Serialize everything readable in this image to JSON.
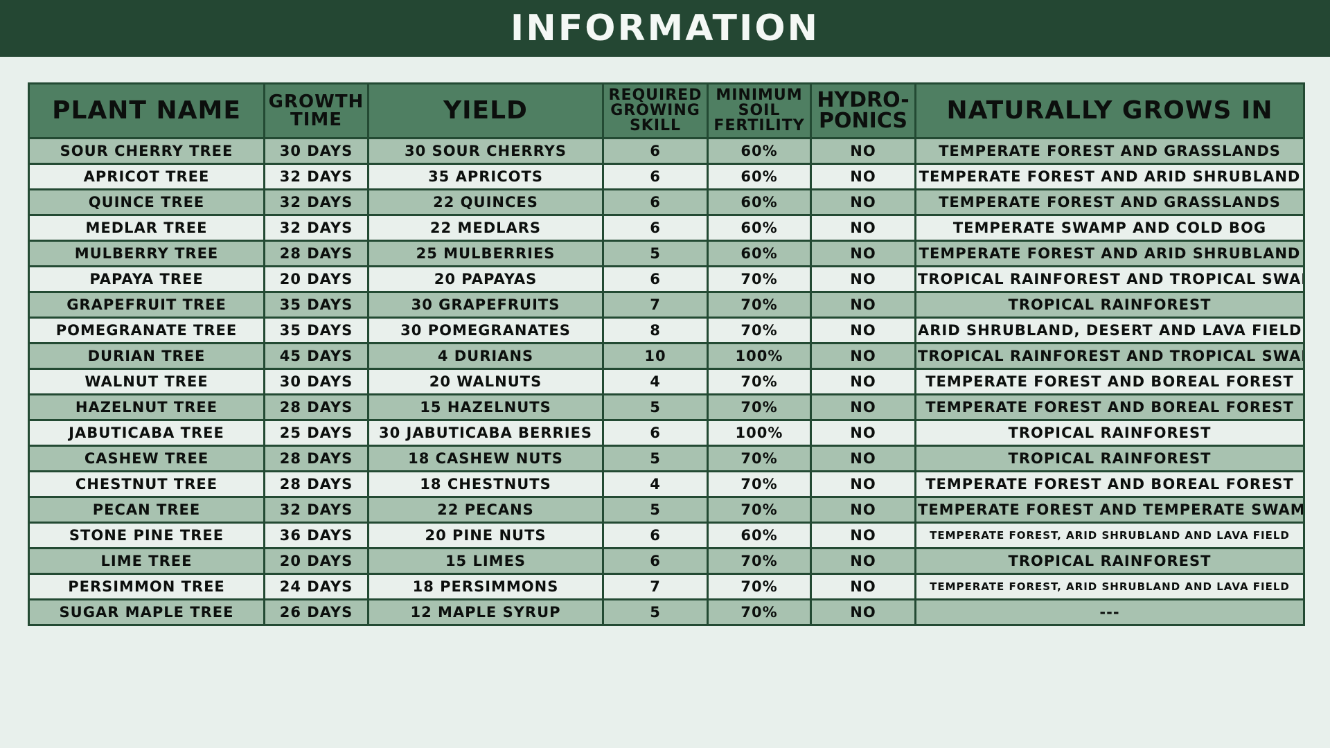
{
  "title": "INFORMATION",
  "columns": [
    "PLANT NAME",
    "GROWTH TIME",
    "YIELD",
    "REQUIRED GROWING SKILL",
    "MINIMUM SOIL FERTILITY",
    "HYDRO-PONICS",
    "NATURALLY GROWS IN"
  ],
  "rows": [
    [
      "SOUR CHERRY TREE",
      "30 DAYS",
      "30 SOUR CHERRYS",
      "6",
      "60%",
      "NO",
      "TEMPERATE FOREST AND GRASSLANDS"
    ],
    [
      "APRICOT TREE",
      "32 DAYS",
      "35 APRICOTS",
      "6",
      "60%",
      "NO",
      "TEMPERATE FOREST AND ARID SHRUBLAND"
    ],
    [
      "QUINCE TREE",
      "32 DAYS",
      "22 QUINCES",
      "6",
      "60%",
      "NO",
      "TEMPERATE FOREST AND GRASSLANDS"
    ],
    [
      "MEDLAR TREE",
      "32 DAYS",
      "22 MEDLARS",
      "6",
      "60%",
      "NO",
      "TEMPERATE SWAMP AND COLD BOG"
    ],
    [
      "MULBERRY TREE",
      "28 DAYS",
      "25 MULBERRIES",
      "5",
      "60%",
      "NO",
      "TEMPERATE FOREST AND ARID SHRUBLAND"
    ],
    [
      "PAPAYA TREE",
      "20 DAYS",
      "20 PAPAYAS",
      "6",
      "70%",
      "NO",
      "TROPICAL RAINFOREST AND TROPICAL SWAMP"
    ],
    [
      "GRAPEFRUIT TREE",
      "35 DAYS",
      "30 GRAPEFRUITS",
      "7",
      "70%",
      "NO",
      "TROPICAL RAINFOREST"
    ],
    [
      "POMEGRANATE TREE",
      "35 DAYS",
      "30 POMEGRANATES",
      "8",
      "70%",
      "NO",
      "ARID SHRUBLAND, DESERT AND LAVA FIELD"
    ],
    [
      "DURIAN TREE",
      "45 DAYS",
      "4 DURIANS",
      "10",
      "100%",
      "NO",
      "TROPICAL RAINFOREST AND TROPICAL SWAMP"
    ],
    [
      "WALNUT TREE",
      "30 DAYS",
      "20 WALNUTS",
      "4",
      "70%",
      "NO",
      "TEMPERATE FOREST AND BOREAL FOREST"
    ],
    [
      "HAZELNUT TREE",
      "28 DAYS",
      "15 HAZELNUTS",
      "5",
      "70%",
      "NO",
      "TEMPERATE FOREST AND BOREAL FOREST"
    ],
    [
      "JABUTICABA TREE",
      "25 DAYS",
      "30 JABUTICABA BERRIES",
      "6",
      "100%",
      "NO",
      "TROPICAL RAINFOREST"
    ],
    [
      "CASHEW TREE",
      "28 DAYS",
      "18 CASHEW NUTS",
      "5",
      "70%",
      "NO",
      "TROPICAL RAINFOREST"
    ],
    [
      "CHESTNUT TREE",
      "28 DAYS",
      "18 CHESTNUTS",
      "4",
      "70%",
      "NO",
      "TEMPERATE FOREST AND BOREAL FOREST"
    ],
    [
      "PECAN TREE",
      "32 DAYS",
      "22 PECANS",
      "5",
      "70%",
      "NO",
      "TEMPERATE FOREST AND TEMPERATE SWAMP"
    ],
    [
      "STONE PINE TREE",
      "36 DAYS",
      "20 PINE NUTS",
      "6",
      "60%",
      "NO",
      "TEMPERATE FOREST, ARID SHRUBLAND AND LAVA FIELD"
    ],
    [
      "LIME TREE",
      "20 DAYS",
      "15 LIMES",
      "6",
      "70%",
      "NO",
      "TROPICAL RAINFOREST"
    ],
    [
      "PERSIMMON TREE",
      "24 DAYS",
      "18 PERSIMMONS",
      "7",
      "70%",
      "NO",
      "TEMPERATE FOREST, ARID SHRUBLAND AND LAVA FIELD"
    ],
    [
      "SUGAR MAPLE TREE",
      "26 DAYS",
      "12 MAPLE SYRUP",
      "5",
      "70%",
      "NO",
      "---"
    ]
  ],
  "colors": {
    "banner": "#244733",
    "header": "#4f7f62",
    "row_odd": "#a8c2b0",
    "row_even": "#e9f0ec",
    "border": "#234a33"
  }
}
